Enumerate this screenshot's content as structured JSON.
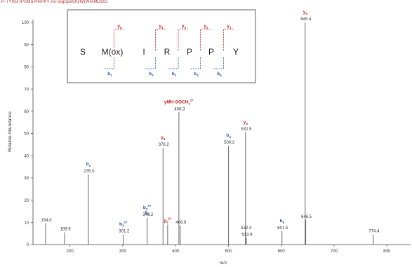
{
  "header": {
    "text": "P-TYRΟ-IPSMSPIRPPY-Ac-SigSpeS0yW(WIAMDOO"
  },
  "chart_data": {
    "type": "bar",
    "xlabel": "m/z",
    "ylabel": "Relative Abundance",
    "xlim": [
      130,
      845
    ],
    "ylim": [
      0,
      100
    ],
    "x_ticks": [
      200,
      300,
      400,
      500,
      600,
      700,
      800
    ],
    "y_ticks": [
      0,
      10,
      20,
      30,
      40,
      50,
      60,
      70,
      80,
      90,
      100
    ],
    "peaks": [
      {
        "mz": 154.0,
        "intensity": 9.5,
        "label": "154.0"
      },
      {
        "mz": 189.9,
        "intensity": 5.5,
        "label": "189.9"
      },
      {
        "mz": 235.0,
        "intensity": 31.5,
        "label": "235.0",
        "ion": "b",
        "sub": "2",
        "sup": "",
        "ion_color": "#2a4faf"
      },
      {
        "mz": 301.2,
        "intensity": 4.5,
        "label": "301.2",
        "ion": "b",
        "sub": "3",
        "sup": "2+",
        "ion_color": "#2a4faf"
      },
      {
        "mz": 346.2,
        "intensity": 12.0,
        "label": "346.2",
        "ion": "b",
        "sub": "3",
        "sup": "2+",
        "ion_color": "#2a4faf",
        "ion2": "b",
        "sub2": "3",
        "ion2_color": "#2a4faf"
      },
      {
        "mz": 376.2,
        "intensity": 43.5,
        "label": "376.2",
        "ion": "y",
        "sub": "3",
        "sup": "",
        "ion_color": "#c02020"
      },
      {
        "mz": 385.0,
        "intensity": 9.0,
        "label": "",
        "ion": "y",
        "sub": "5",
        "sup": "2+",
        "ion_color": "#c02020"
      },
      {
        "mz": 406.3,
        "intensity": 59.5,
        "label": "406.3",
        "ion": "yMH-SOCH",
        "sub": "3",
        "sup": "2+",
        "ion_color": "#c02020"
      },
      {
        "mz": 408.8,
        "intensity": 8.5,
        "label": "408.8"
      },
      {
        "mz": 500.3,
        "intensity": 44.5,
        "label": "500.3",
        "ion": "b",
        "sub": "4",
        "sup": "",
        "ion_color": "#2a4faf"
      },
      {
        "mz": 532.5,
        "intensity": 50.5,
        "label": "532.5",
        "ion": "y",
        "sub": "4",
        "sup": "",
        "ion_color": "#c02020"
      },
      {
        "mz": 532.4,
        "intensity": 6.0,
        "label": "532.4"
      },
      {
        "mz": 533.9,
        "intensity": 3.0,
        "label": "533.9"
      },
      {
        "mz": 601.5,
        "intensity": 6.0,
        "label": "601.5",
        "ion": "b",
        "sub": "5",
        "sup": "",
        "ion_color": "#2a4faf"
      },
      {
        "mz": 645.4,
        "intensity": 100.0,
        "label": "645.4",
        "ion": "y",
        "sub": "5",
        "sup": "",
        "ion_color": "#c02020"
      },
      {
        "mz": 646.5,
        "intensity": 11.0,
        "label": "646.5"
      },
      {
        "mz": 774.4,
        "intensity": 4.5,
        "label": "774.4"
      }
    ],
    "inset": {
      "residues": [
        "S",
        "M(ox)",
        "I",
        "R",
        "P",
        "P",
        "Y"
      ],
      "y_ions": [
        "y5",
        "y4",
        "y3",
        "y2",
        "y1"
      ],
      "b_ions": [
        "b1",
        "b2",
        "b3",
        "b4",
        "b5"
      ]
    }
  }
}
